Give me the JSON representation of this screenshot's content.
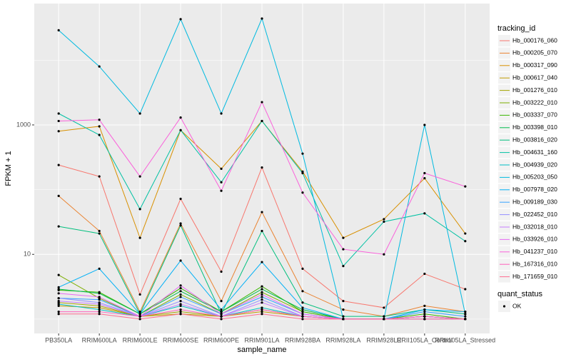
{
  "chart_data": {
    "type": "line",
    "x_label": "sample_name",
    "y_label": "FPKM + 1",
    "categories": [
      "PB350LA",
      "RRIM600LA",
      "RRIM600LE",
      "RRIM600SE",
      "RRIM600PE",
      "RRIM901LA",
      "RRIM928BA",
      "RRIM928LA",
      "RRIM928LE",
      "RRII105LA_Control",
      "RRII105LA_Stressed"
    ],
    "yscale": "log",
    "ylim": [
      0.6,
      75000
    ],
    "yticks": [
      10,
      1000
    ],
    "grid": true,
    "legend_title": "tracking_id",
    "legend_position": "right",
    "point_legend_title": "quant_status",
    "point_legend_label": "OK",
    "point_color": "#000000",
    "series": [
      {
        "name": "Hb_000176_060",
        "color": "#F8766D",
        "values": [
          240,
          160,
          2.4,
          72,
          5.4,
          220,
          6,
          1.9,
          1.5,
          5,
          2.9
        ]
      },
      {
        "name": "Hb_000205_070",
        "color": "#EA8331",
        "values": [
          80,
          23,
          1.3,
          30,
          1.9,
          45,
          2.7,
          1.4,
          1.1,
          1.6,
          1.3
        ]
      },
      {
        "name": "Hb_000317_090",
        "color": "#D89000",
        "values": [
          800,
          950,
          18,
          830,
          210,
          1150,
          190,
          18,
          35,
          150,
          21
        ]
      },
      {
        "name": "Hb_000617_040",
        "color": "#C09B00",
        "values": [
          1.6,
          1.5,
          1.1,
          1.2,
          1.1,
          1.3,
          1.1,
          1.0,
          1.0,
          1.1,
          1.0
        ]
      },
      {
        "name": "Hb_001276_010",
        "color": "#A3A500",
        "values": [
          1.8,
          1.6,
          1.1,
          1.3,
          1.1,
          1.4,
          1.1,
          1.0,
          1.0,
          1.1,
          1.0
        ]
      },
      {
        "name": "Hb_003222_010",
        "color": "#7CAE00",
        "values": [
          4.8,
          2.1,
          1.1,
          2.4,
          1.2,
          2.6,
          1.3,
          1.0,
          1.0,
          1.1,
          1.0
        ]
      },
      {
        "name": "Hb_003337_070",
        "color": "#39B600",
        "values": [
          2.8,
          2.6,
          1.2,
          3.0,
          1.3,
          3.2,
          1.3,
          1.0,
          1.0,
          1.2,
          1.0
        ]
      },
      {
        "name": "Hb_003398_010",
        "color": "#00BB4E",
        "values": [
          2.9,
          2.5,
          1.2,
          2.7,
          1.3,
          2.9,
          1.4,
          1.0,
          1.0,
          1.1,
          1.0
        ]
      },
      {
        "name": "Hb_003816_020",
        "color": "#00BF7D",
        "values": [
          27,
          21,
          1.2,
          28,
          1.2,
          23,
          1.8,
          1.1,
          1.1,
          1.4,
          1.2
        ]
      },
      {
        "name": "Hb_004631_160",
        "color": "#00C1A3",
        "values": [
          1500,
          700,
          50,
          830,
          130,
          1150,
          180,
          6.6,
          32,
          43,
          16
        ]
      },
      {
        "name": "Hb_004939_020",
        "color": "#00BFC4",
        "values": [
          1.7,
          1.4,
          1.1,
          1.6,
          1.1,
          1.5,
          1.1,
          1.0,
          1.0,
          1.0,
          1.0
        ]
      },
      {
        "name": "Hb_005203_050",
        "color": "#00BAE0",
        "values": [
          29000,
          8000,
          1500,
          43000,
          1500,
          44000,
          360,
          1.0,
          1.0,
          1000,
          1.2
        ]
      },
      {
        "name": "Hb_007978_020",
        "color": "#00B0F6",
        "values": [
          3.1,
          6,
          1.2,
          8,
          1.4,
          7.6,
          1.5,
          1.0,
          1.0,
          1.4,
          1.3
        ]
      },
      {
        "name": "Hb_009189_030",
        "color": "#35A2FF",
        "values": [
          2.1,
          2.0,
          1.1,
          2.2,
          1.2,
          2.2,
          1.2,
          1.0,
          1.0,
          1.3,
          1.1
        ]
      },
      {
        "name": "Hb_022452_010",
        "color": "#9590FF",
        "values": [
          2.1,
          1.8,
          1.1,
          1.9,
          1.1,
          2.0,
          1.1,
          1.0,
          1.0,
          1.1,
          1.0
        ]
      },
      {
        "name": "Hb_032018_010",
        "color": "#C77CFF",
        "values": [
          1.9,
          1.7,
          1.1,
          1.7,
          1.1,
          1.8,
          1.1,
          1.0,
          1.0,
          1.0,
          1.0
        ]
      },
      {
        "name": "Hb_033926_010",
        "color": "#E76BF3",
        "values": [
          2.5,
          2.2,
          1.1,
          3.3,
          1.2,
          2.4,
          1.2,
          1.0,
          1.0,
          1.1,
          1.0
        ]
      },
      {
        "name": "Hb_041237_010",
        "color": "#FA62DB",
        "values": [
          1150,
          1200,
          160,
          1300,
          96,
          2250,
          90,
          12,
          10,
          180,
          112
        ]
      },
      {
        "name": "Hb_167316_010",
        "color": "#FF62BC",
        "values": [
          1.3,
          1.3,
          1.1,
          1.4,
          1.1,
          1.4,
          1.1,
          1.0,
          1.0,
          1.1,
          1.0
        ]
      },
      {
        "name": "Hb_171659_010",
        "color": "#FF6C90",
        "values": [
          1.2,
          1.2,
          1.0,
          1.2,
          1.0,
          1.2,
          1.0,
          1.0,
          1.0,
          1.0,
          1.0
        ]
      }
    ]
  }
}
